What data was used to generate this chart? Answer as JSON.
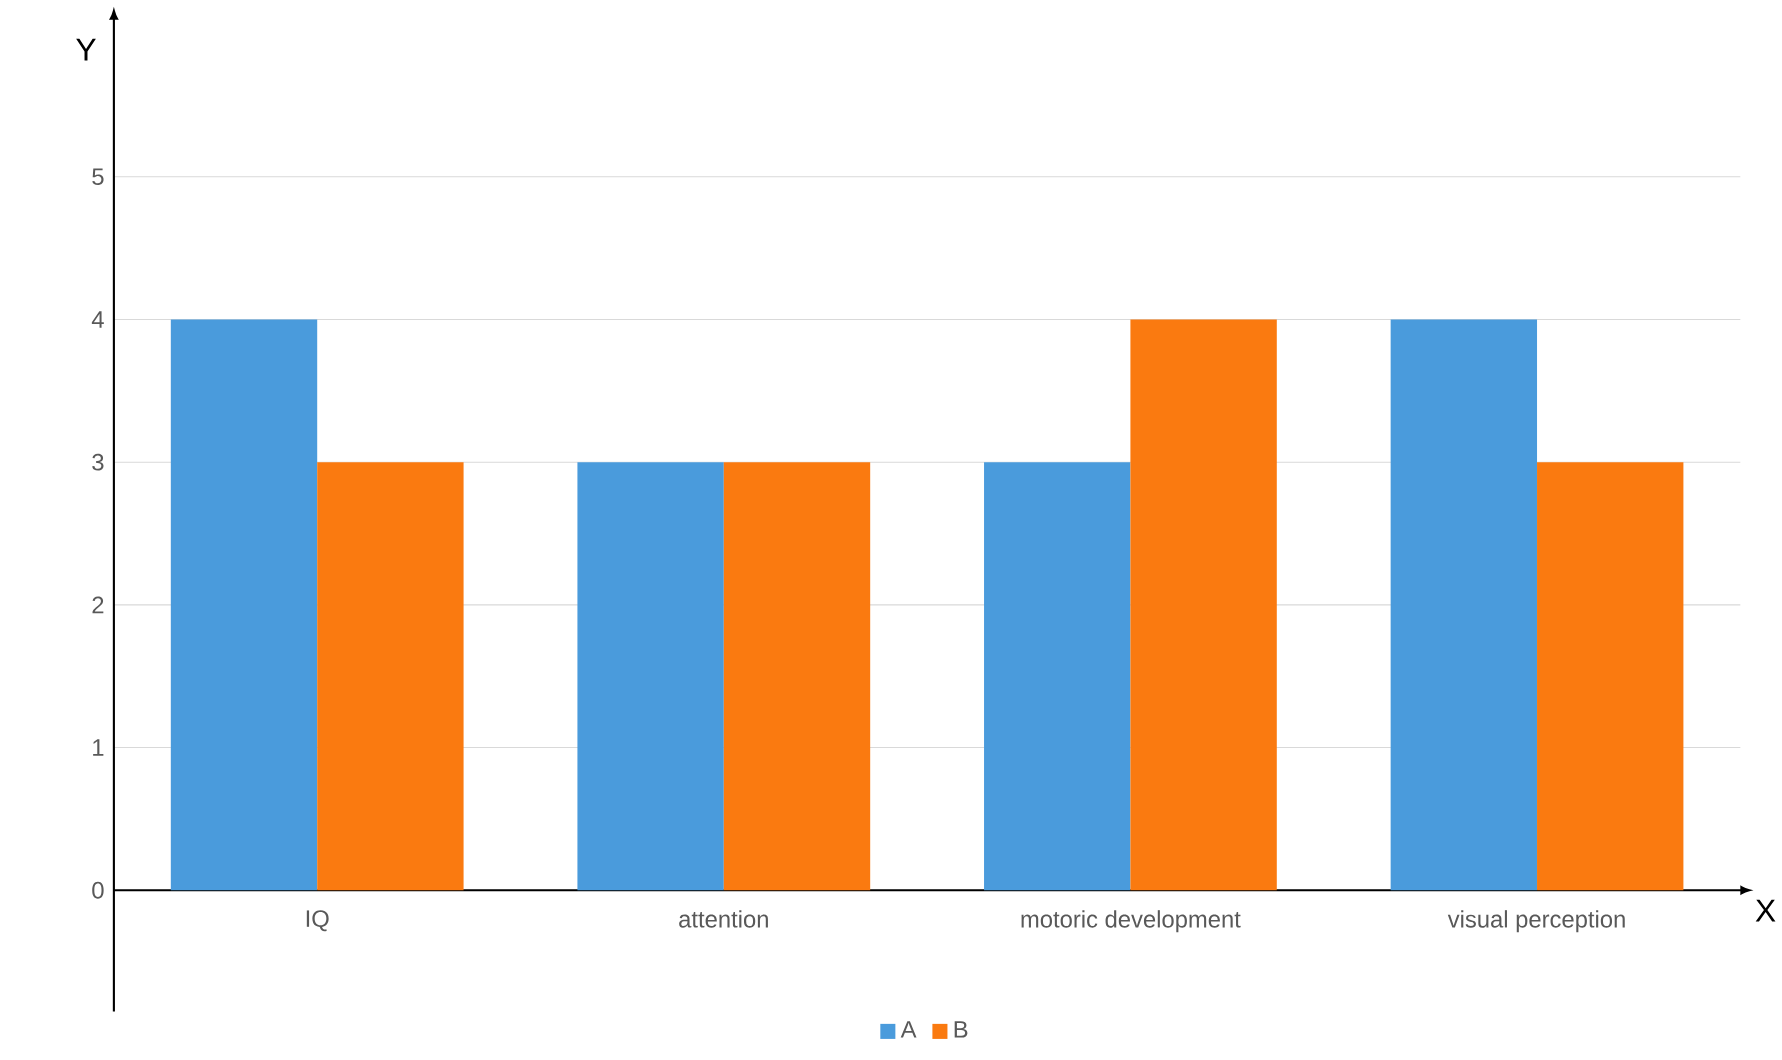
{
  "chart_data": {
    "type": "bar",
    "xlabel": "X",
    "ylabel": "Y",
    "categories": [
      "IQ",
      "attention",
      "motoric development",
      "visual perception"
    ],
    "series": [
      {
        "name": "A",
        "color": "#4a9bdc",
        "values": [
          4,
          3,
          3,
          4
        ]
      },
      {
        "name": "B",
        "color": "#fa7a10",
        "values": [
          3,
          3,
          4,
          3
        ]
      }
    ],
    "ylim": [
      -0.85,
      6.1
    ],
    "yticks": [
      0,
      1,
      2,
      3,
      4,
      5
    ],
    "grid": "y",
    "legend": "bottom"
  }
}
